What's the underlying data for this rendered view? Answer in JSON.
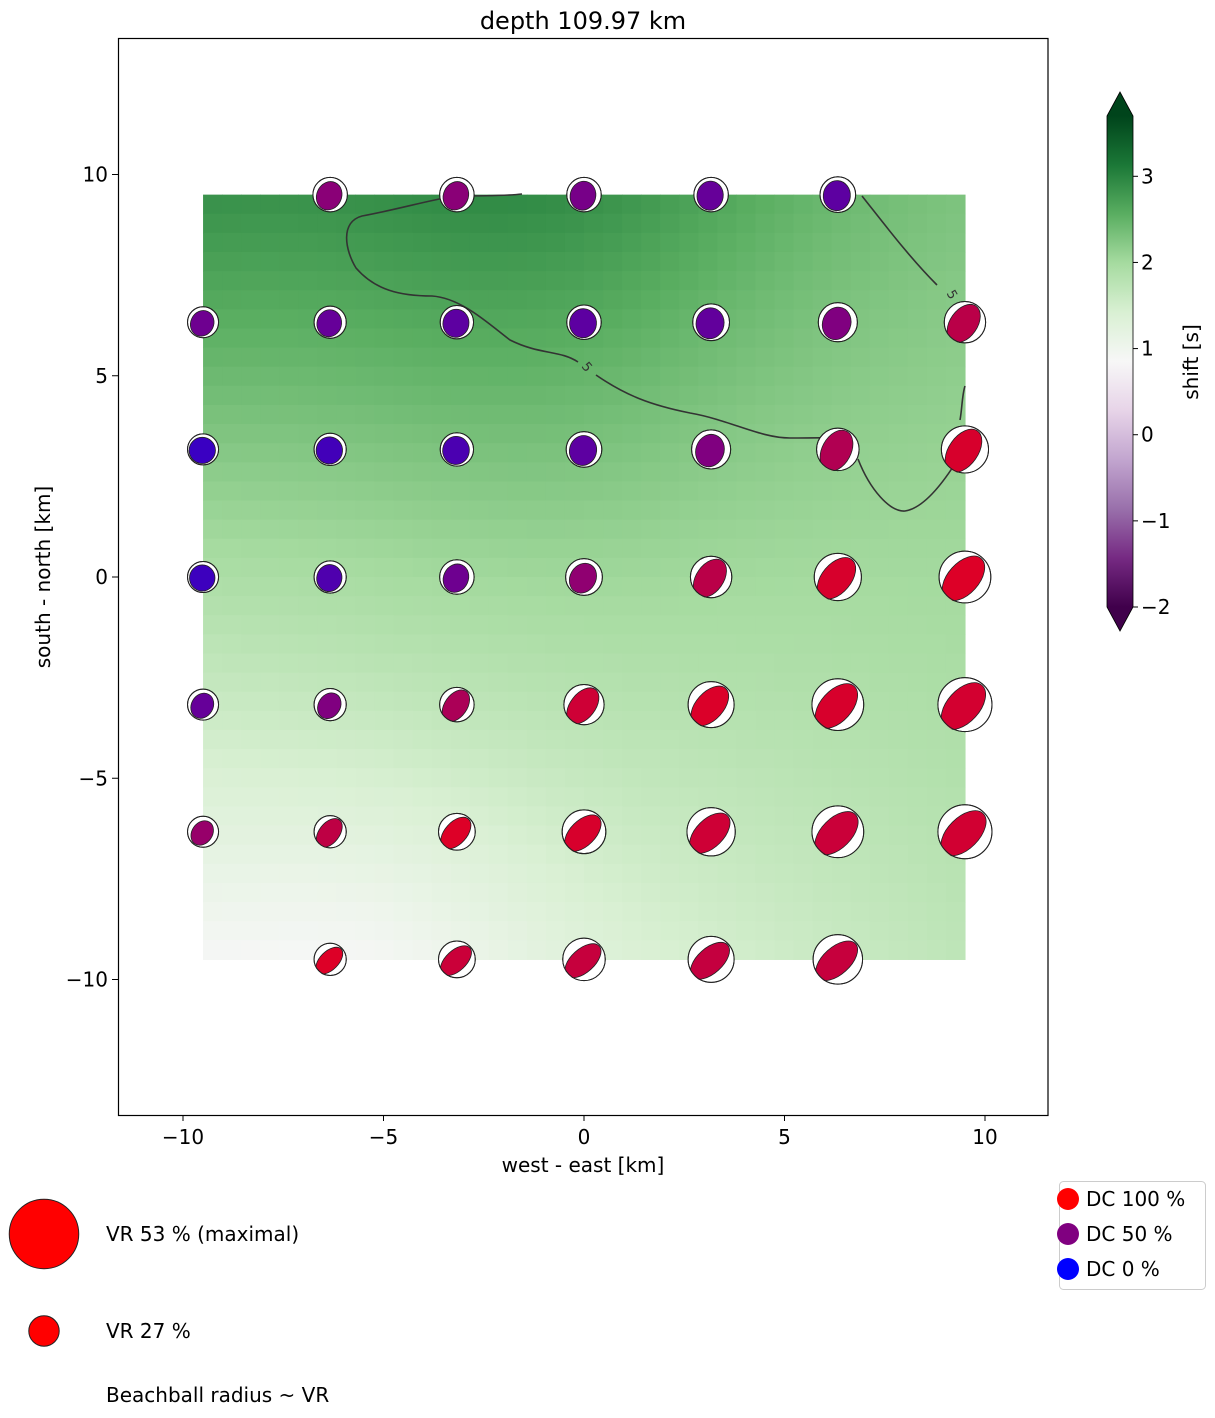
{
  "chart_data": {
    "type": "heatmap",
    "title": "depth 109.97 km",
    "xlabel": "west - east [km]",
    "ylabel": "south - north [km]",
    "xlim": [
      -11.6,
      11.6
    ],
    "ylim": [
      -13.4,
      13.4
    ],
    "xticks": [
      -10,
      -5,
      0,
      5,
      10
    ],
    "yticks": [
      -10,
      -5,
      0,
      5,
      10
    ],
    "xtick_labels": [
      "−10",
      "−5",
      "0",
      "5",
      "10"
    ],
    "ytick_labels": [
      "−10",
      "−5",
      "0",
      "5",
      "10"
    ],
    "grid": false,
    "background_field": {
      "name": "shift [s]",
      "extent_km": [
        -9.5,
        9.5,
        -9.5,
        9.5
      ],
      "colormap": "PRGn",
      "corner_values_s": {
        "top_left": 2.9,
        "top_right": 2.3,
        "bottom_left": 0.9,
        "bottom_right": 1.7,
        "top_center": 3.0
      }
    },
    "colorbar": {
      "label": "shift [s]",
      "range": [
        -2,
        3.7
      ],
      "ticks": [
        -2,
        -1,
        0,
        1,
        2,
        3
      ],
      "tick_labels": [
        "−2",
        "−1",
        "0",
        "1",
        "2",
        "3"
      ],
      "extend": "both",
      "stops": [
        "#40004b",
        "#762a83",
        "#9970ab",
        "#c2a5cf",
        "#e7d4e8",
        "#f7f7f7",
        "#d9f0d3",
        "#a6dba0",
        "#5aae61",
        "#1b7837",
        "#00441b"
      ]
    },
    "contour": {
      "level_label": "5",
      "label_positions_km": [
        [
          0,
          5.2
        ],
        [
          9.1,
          7.0
        ]
      ]
    },
    "beachball_grid_x_km": [
      -9.5,
      -6.33,
      -3.17,
      0,
      3.17,
      6.33,
      9.5
    ],
    "beachball_grid_y_km": [
      9.5,
      6.33,
      3.17,
      0,
      -3.17,
      -6.33,
      -9.5
    ],
    "beachballs": [
      {
        "x": -6.33,
        "y": 9.5,
        "vr": 30,
        "dc": 55,
        "strike": 25,
        "lens": 0.72
      },
      {
        "x": -3.17,
        "y": 9.5,
        "vr": 30,
        "dc": 55,
        "strike": 25,
        "lens": 0.72
      },
      {
        "x": 0,
        "y": 9.5,
        "vr": 30,
        "dc": 45,
        "strike": 15,
        "lens": 0.74
      },
      {
        "x": 3.17,
        "y": 9.5,
        "vr": 30,
        "dc": 35,
        "strike": 8,
        "lens": 0.76
      },
      {
        "x": 6.33,
        "y": 9.5,
        "vr": 31,
        "dc": 30,
        "strike": 5,
        "lens": 0.76
      },
      {
        "x": -9.5,
        "y": 6.33,
        "vr": 27,
        "dc": 40,
        "strike": 25,
        "lens": 0.74
      },
      {
        "x": -6.33,
        "y": 6.33,
        "vr": 28,
        "dc": 35,
        "strike": 15,
        "lens": 0.76
      },
      {
        "x": -3.17,
        "y": 6.33,
        "vr": 29,
        "dc": 30,
        "strike": 10,
        "lens": 0.78
      },
      {
        "x": 0,
        "y": 6.33,
        "vr": 30,
        "dc": 30,
        "strike": 5,
        "lens": 0.78
      },
      {
        "x": 3.17,
        "y": 6.33,
        "vr": 32,
        "dc": 33,
        "strike": 10,
        "lens": 0.76
      },
      {
        "x": 6.33,
        "y": 6.33,
        "vr": 34,
        "dc": 50,
        "strike": 20,
        "lens": 0.72
      },
      {
        "x": 9.5,
        "y": 6.33,
        "vr": 36,
        "dc": 80,
        "strike": 35,
        "lens": 0.66
      },
      {
        "x": -9.5,
        "y": 3.17,
        "vr": 27,
        "dc": 10,
        "strike": 0,
        "lens": 0.85
      },
      {
        "x": -6.33,
        "y": 3.17,
        "vr": 28,
        "dc": 15,
        "strike": 5,
        "lens": 0.82
      },
      {
        "x": -3.17,
        "y": 3.17,
        "vr": 29,
        "dc": 20,
        "strike": 8,
        "lens": 0.8
      },
      {
        "x": 0,
        "y": 3.17,
        "vr": 31,
        "dc": 30,
        "strike": 15,
        "lens": 0.76
      },
      {
        "x": 3.17,
        "y": 3.17,
        "vr": 34,
        "dc": 50,
        "strike": 20,
        "lens": 0.72
      },
      {
        "x": 6.33,
        "y": 3.17,
        "vr": 37,
        "dc": 75,
        "strike": 28,
        "lens": 0.68
      },
      {
        "x": 9.5,
        "y": 3.17,
        "vr": 41,
        "dc": 95,
        "strike": 35,
        "lens": 0.62
      },
      {
        "x": -9.5,
        "y": 0,
        "vr": 27,
        "dc": 12,
        "strike": 0,
        "lens": 0.82
      },
      {
        "x": -6.33,
        "y": 0,
        "vr": 28,
        "dc": 22,
        "strike": 15,
        "lens": 0.78
      },
      {
        "x": -3.17,
        "y": 0,
        "vr": 30,
        "dc": 40,
        "strike": 25,
        "lens": 0.72
      },
      {
        "x": 0,
        "y": 0,
        "vr": 32,
        "dc": 58,
        "strike": 30,
        "lens": 0.7
      },
      {
        "x": 3.17,
        "y": 0,
        "vr": 36,
        "dc": 80,
        "strike": 35,
        "lens": 0.66
      },
      {
        "x": 6.33,
        "y": 0,
        "vr": 41,
        "dc": 95,
        "strike": 40,
        "lens": 0.62
      },
      {
        "x": 9.5,
        "y": 0,
        "vr": 45,
        "dc": 98,
        "strike": 42,
        "lens": 0.6
      },
      {
        "x": -9.5,
        "y": -3.17,
        "vr": 27,
        "dc": 35,
        "strike": 30,
        "lens": 0.7
      },
      {
        "x": -6.33,
        "y": -3.17,
        "vr": 28,
        "dc": 50,
        "strike": 32,
        "lens": 0.68
      },
      {
        "x": -3.17,
        "y": -3.17,
        "vr": 30,
        "dc": 72,
        "strike": 35,
        "lens": 0.65
      },
      {
        "x": 0,
        "y": -3.17,
        "vr": 35,
        "dc": 90,
        "strike": 38,
        "lens": 0.62
      },
      {
        "x": 3.17,
        "y": -3.17,
        "vr": 40,
        "dc": 97,
        "strike": 42,
        "lens": 0.6
      },
      {
        "x": 6.33,
        "y": -3.17,
        "vr": 45,
        "dc": 95,
        "strike": 42,
        "lens": 0.6
      },
      {
        "x": 9.5,
        "y": -3.17,
        "vr": 47,
        "dc": 93,
        "strike": 42,
        "lens": 0.6
      },
      {
        "x": -9.5,
        "y": -6.33,
        "vr": 27,
        "dc": 62,
        "strike": 35,
        "lens": 0.66
      },
      {
        "x": -6.33,
        "y": -6.33,
        "vr": 28,
        "dc": 82,
        "strike": 38,
        "lens": 0.63
      },
      {
        "x": -3.17,
        "y": -6.33,
        "vr": 32,
        "dc": 98,
        "strike": 42,
        "lens": 0.6
      },
      {
        "x": 0,
        "y": -6.33,
        "vr": 38,
        "dc": 95,
        "strike": 45,
        "lens": 0.58
      },
      {
        "x": 3.17,
        "y": -6.33,
        "vr": 42,
        "dc": 90,
        "strike": 45,
        "lens": 0.58
      },
      {
        "x": 6.33,
        "y": -6.33,
        "vr": 45,
        "dc": 88,
        "strike": 45,
        "lens": 0.58
      },
      {
        "x": 9.5,
        "y": -6.33,
        "vr": 47,
        "dc": 92,
        "strike": 45,
        "lens": 0.58
      },
      {
        "x": -6.33,
        "y": -9.5,
        "vr": 28,
        "dc": 98,
        "strike": 45,
        "lens": 0.58
      },
      {
        "x": -3.17,
        "y": -9.5,
        "vr": 32,
        "dc": 88,
        "strike": 47,
        "lens": 0.56
      },
      {
        "x": 0,
        "y": -9.5,
        "vr": 37,
        "dc": 86,
        "strike": 48,
        "lens": 0.55
      },
      {
        "x": 3.17,
        "y": -9.5,
        "vr": 40,
        "dc": 85,
        "strike": 48,
        "lens": 0.55
      },
      {
        "x": 6.33,
        "y": -9.5,
        "vr": 43,
        "dc": 86,
        "strike": 48,
        "lens": 0.55
      }
    ],
    "size_legend": [
      {
        "label": "VR 53 % (maximal)",
        "vr": 53
      },
      {
        "label": "VR 27 %",
        "vr": 27
      }
    ],
    "size_legend_note": "Beachball radius ~ VR",
    "color_legend": [
      {
        "label": "DC 100 %",
        "color": "#ff0000"
      },
      {
        "label": "DC 50 %",
        "color": "#800080"
      },
      {
        "label": "DC 0 %",
        "color": "#0000ff"
      }
    ]
  }
}
